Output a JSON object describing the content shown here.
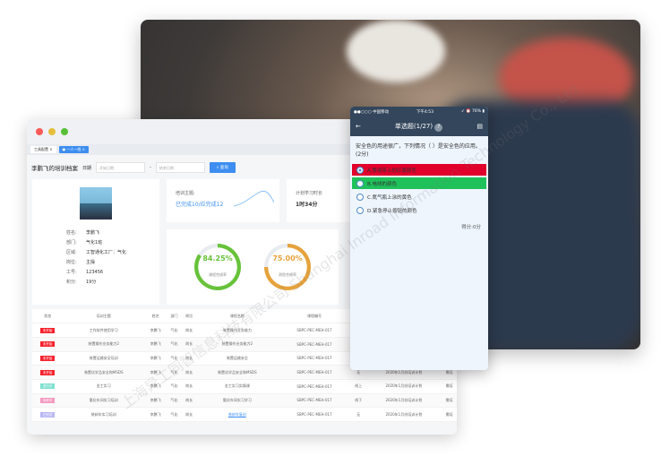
{
  "window": {
    "tabs": [
      {
        "label": "工具配置"
      },
      {
        "label": "一人一档"
      }
    ],
    "title": "李鹏飞的培训档案",
    "date_label": "日期",
    "start_placeholder": "开始日期",
    "sep": "-",
    "end_placeholder": "结束日期",
    "query_button": "查询"
  },
  "profile": {
    "fields": [
      {
        "k": "姓名:",
        "v": "李鹏飞"
      },
      {
        "k": "部门:",
        "v": "气化1班"
      },
      {
        "k": "区域:",
        "v": "工智通化工厂：气化"
      },
      {
        "k": "岗位:",
        "v": "主操"
      },
      {
        "k": "工号:",
        "v": "123456"
      },
      {
        "k": "积分:",
        "v": "19分"
      }
    ]
  },
  "theme": {
    "label": "培训主题:",
    "value": "已完成10/应完成12"
  },
  "plan": {
    "label": "计划学习时长",
    "value": "1时34分"
  },
  "rings": [
    {
      "value": "84.25%",
      "label": "课程完成率",
      "pct": 84.25,
      "color": "#67c23a"
    },
    {
      "value": "75.00%",
      "label": "测验合格率",
      "pct": 75,
      "color": "#e6a23c"
    }
  ],
  "table": {
    "headers": [
      "状态",
      "培训主题",
      "姓名",
      "部门",
      "岗位",
      "课程名称",
      "课程编号",
      "类型",
      "计划",
      ""
    ],
    "rows": [
      {
        "status": "未开始",
        "color": "#f5222d",
        "c": [
          "工作软件使用学习",
          "李鹏飞",
          "气化",
          "岗长",
          "装置操作业务能力",
          "SBPC-PEC-MEH-017",
          "",
          "",
          ""
        ]
      },
      {
        "status": "未开始",
        "color": "#f5222d",
        "c": [
          "装置操作业务能力2",
          "李鹏飞",
          "气化",
          "岗长",
          "装置操作业务能力2",
          "SBPC-PEC-MEH-017",
          "",
          "",
          ""
        ]
      },
      {
        "status": "未开始",
        "color": "#f5222d",
        "c": [
          "装置运输安全培训",
          "李鹏飞",
          "气化",
          "岗长",
          "装置运输安全",
          "SBPC-PEC-MEH-017",
          "",
          "",
          ""
        ]
      },
      {
        "status": "未开始",
        "color": "#f5222d",
        "c": [
          "装置化学品安全和MSDS",
          "李鹏飞",
          "气化",
          "岗长",
          "装置化学品安全和MSDS",
          "SBPC-PEC-MEH-017",
          "无",
          "2020年1月份培训计划",
          "需培"
        ]
      },
      {
        "status": "进行中",
        "color": "#7fe0d0",
        "c": [
          "金工实习",
          "李鹏飞",
          "气化",
          "岗长",
          "金工实习实操课",
          "SBPC-PEC-MEH-017",
          "线上",
          "2020年1月份培训计划",
          "需培"
        ]
      },
      {
        "status": "待考中",
        "color": "#f59ac0",
        "c": [
          "氨化车间实习培训",
          "李鹏飞",
          "气化",
          "岗长",
          "氨化车间实习学习",
          "SBPC-PEC-MEH-017",
          "线下",
          "2020年1月份培训计划",
          "需培"
        ]
      },
      {
        "status": "已完成",
        "color": "#b8b8f5",
        "c": [
          "装卸车实习培训",
          "李鹏飞",
          "气化",
          "岗长",
          "装卸车复训",
          "SBPC-PEC-MEH-017",
          "无",
          "2020年1月份培训计划",
          "需培"
        ]
      }
    ]
  },
  "phone": {
    "carrier": "●●○○○ 中国移动",
    "time": "下午4:53",
    "battery": "76%",
    "title": "单选题(1/27)",
    "help": "?",
    "question": "安全色的用途很广，下列情况（ ）是安全色的应用。(2分)",
    "options": [
      {
        "label": "A.警戒带上的红黄颜色",
        "state": "wrong"
      },
      {
        "label": "B.电线的颜色",
        "state": "correct"
      },
      {
        "label": "C.氮气瓶上涂的黄色",
        "state": ""
      },
      {
        "label": "D.紧急停止按钮的颜色",
        "state": ""
      }
    ],
    "score": "得分:0分"
  },
  "watermark": "上海异工同智信息科技有限公司 Shanghai Inroad Information Technology Co., Ltd."
}
